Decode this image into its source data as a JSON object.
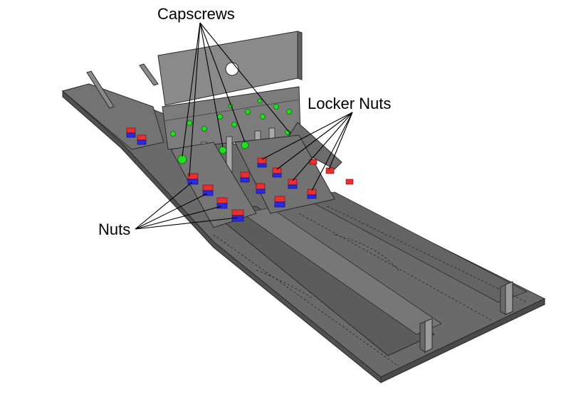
{
  "labels": {
    "capscrews": "Capscrews",
    "locker_nuts": "Locker Nuts",
    "nuts": "Nuts"
  },
  "colors": {
    "background": "#ffffff",
    "steel_dark": "#5a5a5a",
    "steel_mid": "#707070",
    "steel_light": "#8c8c8c",
    "steel_edge": "#2a2a2a",
    "capscrew": "#22dd22",
    "nut_red": "#e83030",
    "nut_blue": "#2a2ae0",
    "leader_line": "#000000"
  }
}
